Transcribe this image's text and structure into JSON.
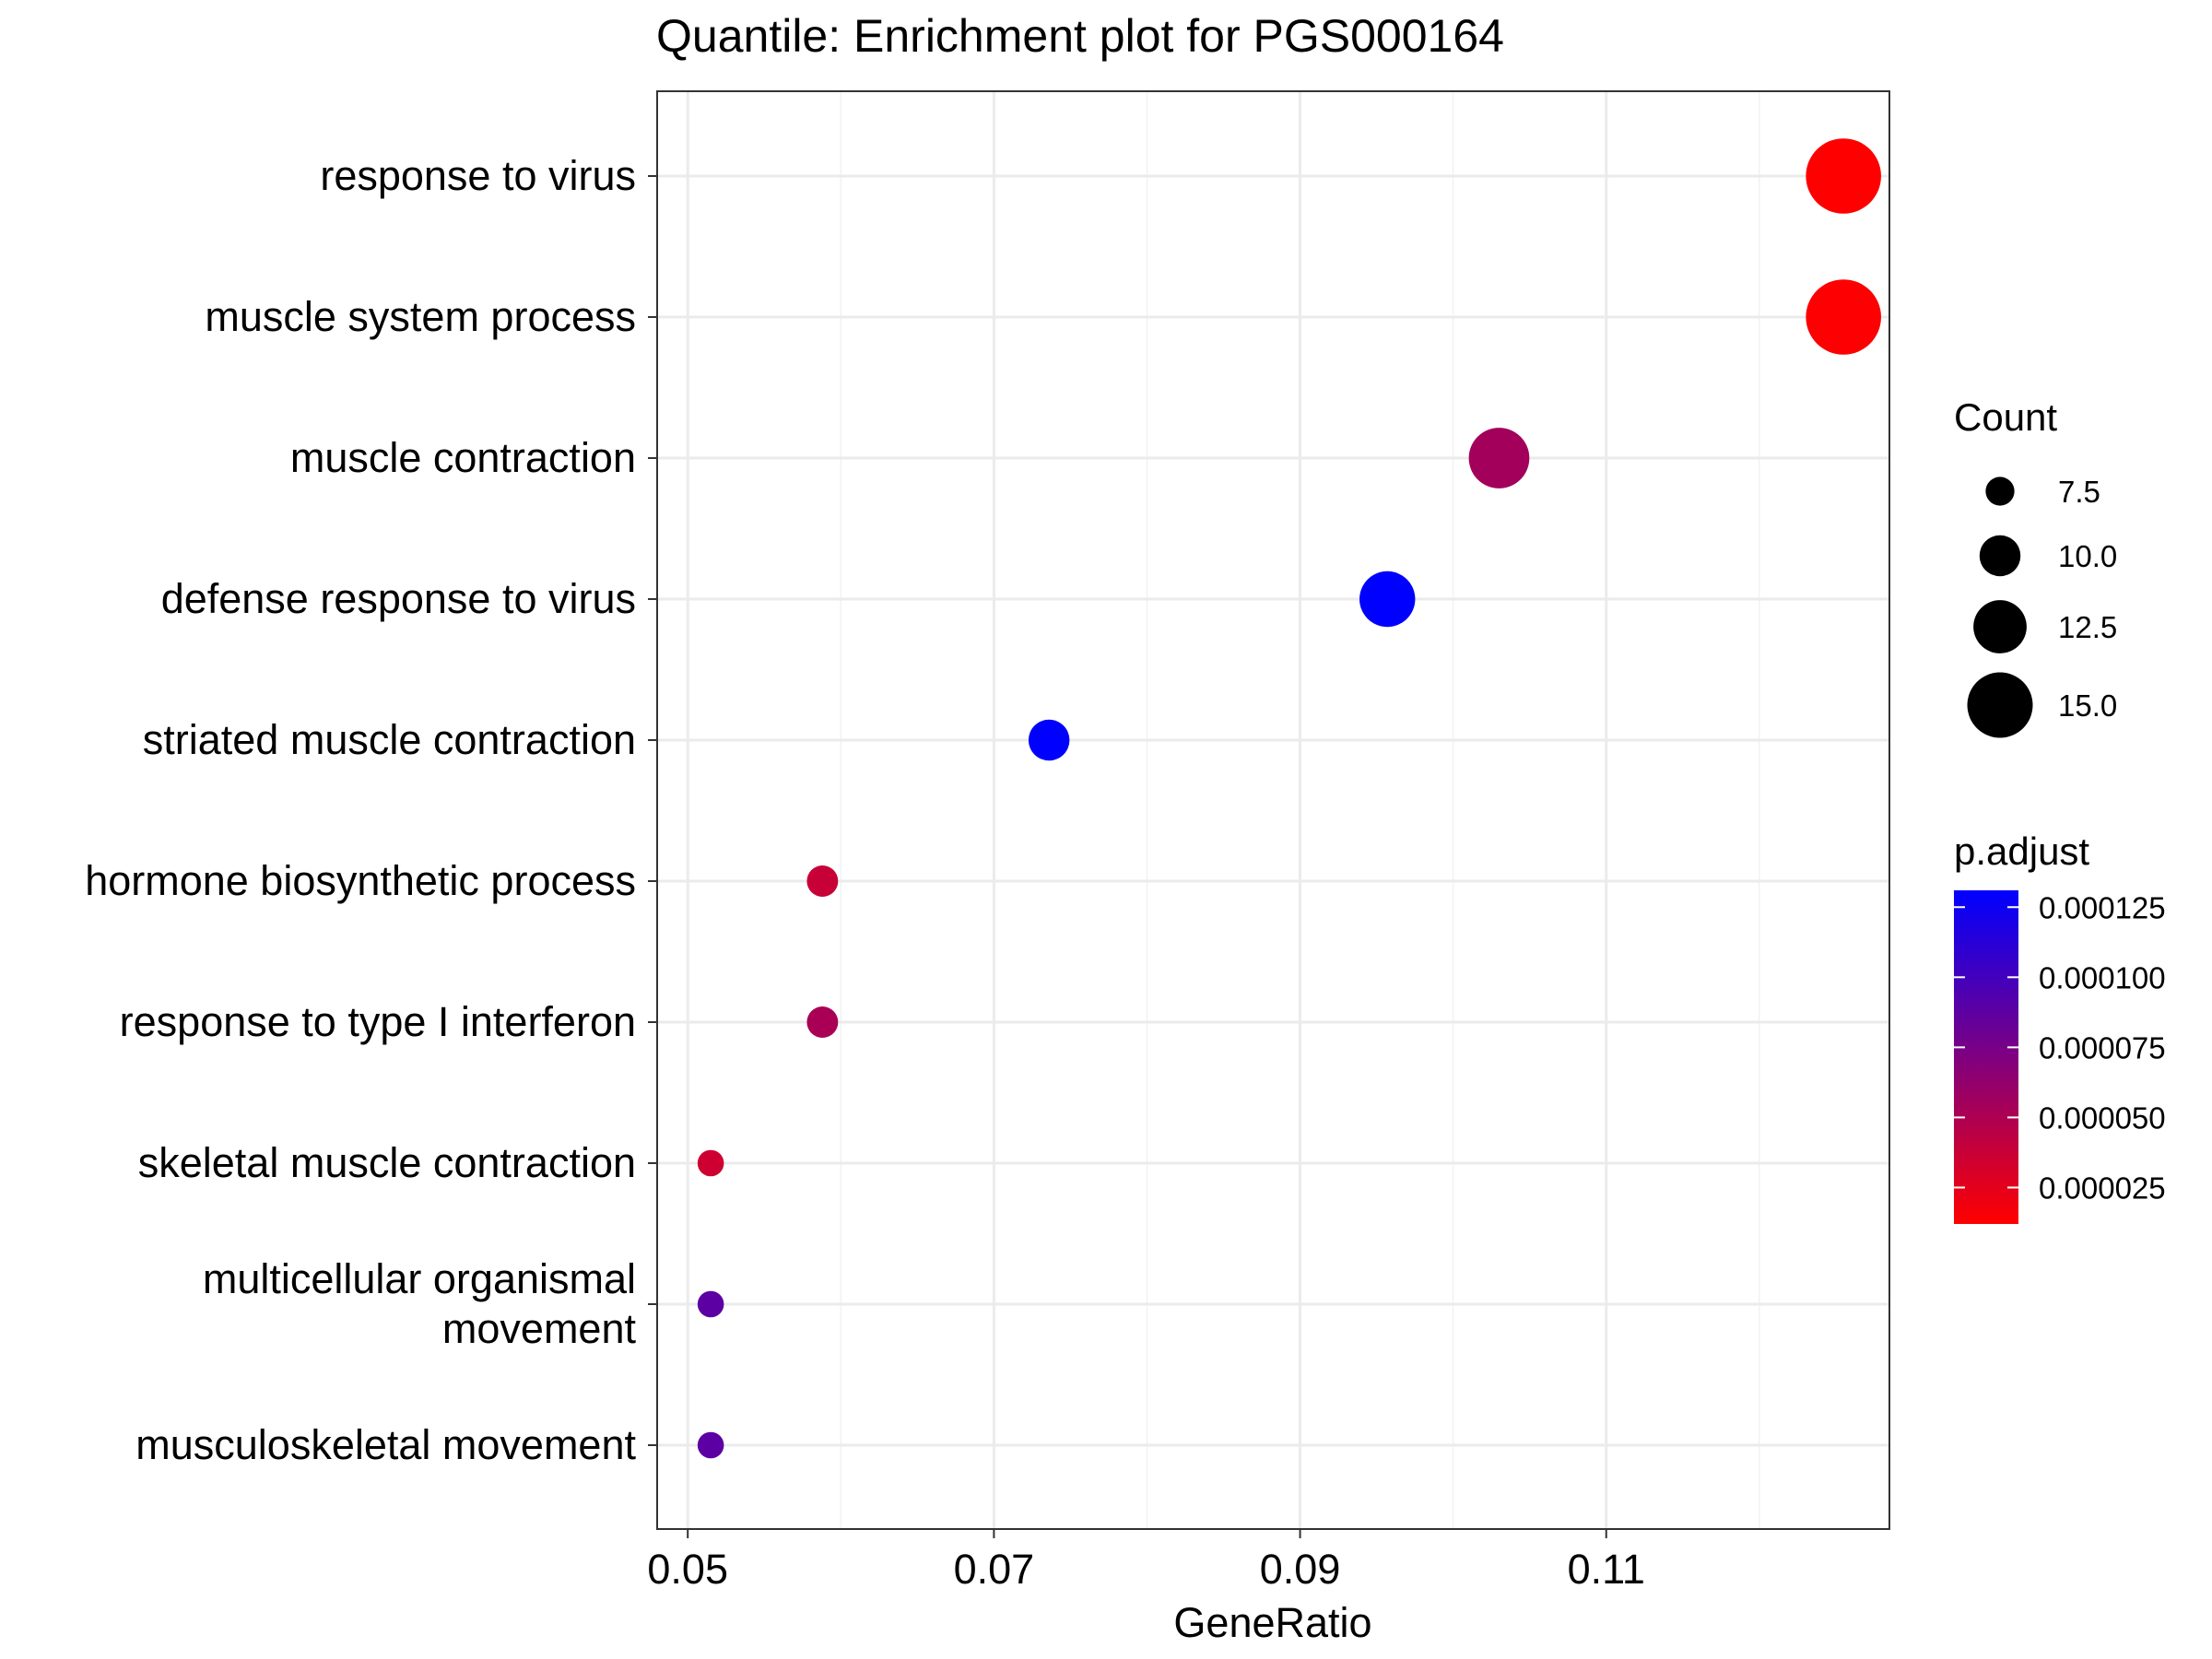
{
  "chart_data": {
    "type": "scatter",
    "title": "Quantile: Enrichment plot for PGS000164",
    "xlabel": "GeneRatio",
    "ylabel": "",
    "xlim": [
      0.048,
      0.1285
    ],
    "x_ticks": [
      0.05,
      0.07,
      0.09,
      0.11
    ],
    "x_tick_labels": [
      "0.05",
      "0.07",
      "0.09",
      "0.11"
    ],
    "grid": true,
    "legend_position": "right",
    "categories": [
      "response to virus",
      "muscle system process",
      "muscle contraction",
      "defense response to virus",
      "striated muscle contraction",
      "hormone biosynthetic process",
      "response to type I interferon",
      "skeletal muscle contraction",
      "multicellular organismal movement",
      "musculoskeletal movement"
    ],
    "category_labels": [
      [
        "response to virus"
      ],
      [
        "muscle system process"
      ],
      [
        "muscle contraction"
      ],
      [
        "defense response to virus"
      ],
      [
        "striated muscle contraction"
      ],
      [
        "hormone biosynthetic process"
      ],
      [
        "response to type I interferon"
      ],
      [
        "skeletal muscle contraction"
      ],
      [
        "multicellular organismal",
        "movement"
      ],
      [
        "musculoskeletal movement"
      ]
    ],
    "points": [
      {
        "term": "response to virus",
        "gene_ratio": 0.1255,
        "count": 17,
        "p_adjust": 1.2e-05
      },
      {
        "term": "muscle system process",
        "gene_ratio": 0.1255,
        "count": 17,
        "p_adjust": 1.3e-05
      },
      {
        "term": "muscle contraction",
        "gene_ratio": 0.103,
        "count": 14,
        "p_adjust": 5.5e-05
      },
      {
        "term": "defense response to virus",
        "gene_ratio": 0.0957,
        "count": 13,
        "p_adjust": 0.000131
      },
      {
        "term": "striated muscle contraction",
        "gene_ratio": 0.0736,
        "count": 10,
        "p_adjust": 0.000131
      },
      {
        "term": "hormone biosynthetic process",
        "gene_ratio": 0.0588,
        "count": 8,
        "p_adjust": 3.8e-05
      },
      {
        "term": "response to type I interferon",
        "gene_ratio": 0.0588,
        "count": 8,
        "p_adjust": 5.2e-05
      },
      {
        "term": "skeletal muscle contraction",
        "gene_ratio": 0.0515,
        "count": 7,
        "p_adjust": 3.5e-05
      },
      {
        "term": "multicellular organismal movement",
        "gene_ratio": 0.0515,
        "count": 7,
        "p_adjust": 8.8e-05
      },
      {
        "term": "musculoskeletal movement",
        "gene_ratio": 0.0515,
        "count": 7,
        "p_adjust": 8.8e-05
      }
    ],
    "size_legend": {
      "title": "Count",
      "values": [
        7.5,
        10.0,
        12.5,
        15.0
      ],
      "labels": [
        "7.5",
        "10.0",
        "12.5",
        "15.0"
      ]
    },
    "color_legend": {
      "title": "p.adjust",
      "low_color": "#ff0000",
      "high_color": "#0000ff",
      "min": 1.2e-05,
      "max": 0.000131,
      "ticks": [
        2.5e-05,
        5e-05,
        7.5e-05,
        0.0001,
        0.000125
      ],
      "tick_labels": [
        "0.000025",
        "0.000050",
        "0.000075",
        "0.000100",
        "0.000125"
      ]
    }
  }
}
